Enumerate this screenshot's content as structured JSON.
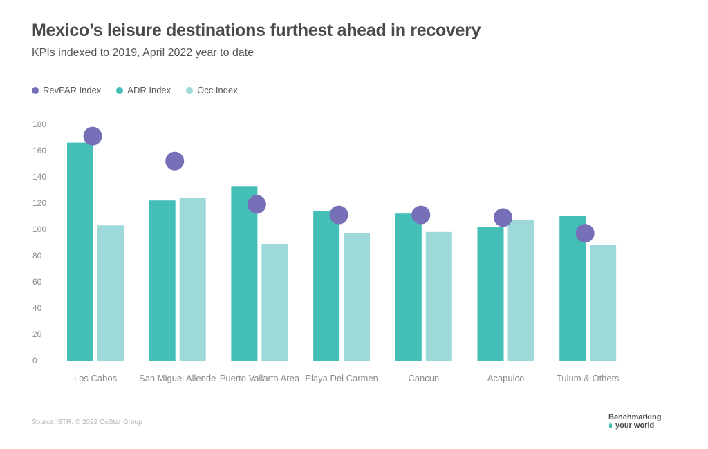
{
  "header": {
    "title": "Mexico’s leisure destinations furthest ahead in recovery",
    "subtitle": "KPIs indexed to 2019, April 2022 year to date"
  },
  "legend": [
    {
      "label": "RevPAR Index",
      "color": "#7670b8"
    },
    {
      "label": "ADR Index",
      "color": "#43bfb7"
    },
    {
      "label": "Occ Index",
      "color": "#9cd9d8"
    }
  ],
  "footer": {
    "source": "Source: STR. © 2022 CoStar Group",
    "logo_line1": "Benchmarking",
    "logo_line2": "your world"
  },
  "chart_data": {
    "type": "bar",
    "title": "Mexico’s leisure destinations furthest ahead in recovery",
    "subtitle": "KPIs indexed to 2019, April 2022 year to date",
    "xlabel": "",
    "ylabel": "",
    "ylim": [
      0,
      180
    ],
    "yticks": [
      0,
      20,
      40,
      60,
      80,
      100,
      120,
      140,
      160,
      180
    ],
    "grid": false,
    "legend_position": "top-left",
    "categories": [
      "Los Cabos",
      "San Miguel Allende",
      "Puerto Vallarta Area",
      "Playa Del Carmen",
      "Cancun",
      "Acapulco",
      "Tulum & Others"
    ],
    "series": [
      {
        "name": "ADR Index",
        "kind": "bar",
        "color": "#43bfb7",
        "values": [
          166,
          122,
          133,
          114,
          112,
          102,
          110
        ]
      },
      {
        "name": "Occ Index",
        "kind": "bar",
        "color": "#9cd9d8",
        "values": [
          103,
          124,
          89,
          97,
          98,
          107,
          88
        ]
      },
      {
        "name": "RevPAR Index",
        "kind": "marker",
        "color": "#7670b8",
        "values": [
          171,
          152,
          119,
          111,
          111,
          109,
          97
        ]
      }
    ]
  }
}
